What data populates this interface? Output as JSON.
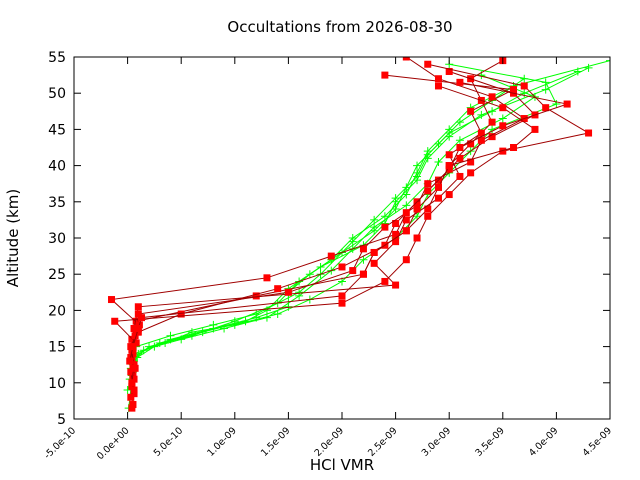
{
  "chart_data": {
    "type": "line",
    "title": "Occultations from 2026-08-30",
    "xlabel": "HCl VMR",
    "ylabel": "Altitude (km)",
    "xlim": [
      -5e-10,
      4.5e-09
    ],
    "ylim": [
      5,
      55
    ],
    "x_tick_labels": [
      "-5.0e-10",
      "0.0e+00",
      "5.0e-10",
      "1.0e-09",
      "1.5e-09",
      "2.0e-09",
      "2.5e-09",
      "3.0e-09",
      "3.5e-09",
      "4.0e-09",
      "4.5e-09"
    ],
    "y_tick_labels": [
      "5",
      "10",
      "15",
      "20",
      "25",
      "30",
      "35",
      "40",
      "45",
      "50",
      "55"
    ],
    "grid": false,
    "legend": "none",
    "series": [
      {
        "color": "#ff0000",
        "marker": "square",
        "line_color": "#a00000",
        "profiles": [
          [
            [
              4e-11,
              6.5
            ],
            [
              6e-11,
              8.5
            ],
            [
              5e-11,
              11.0
            ],
            [
              3e-11,
              13.5
            ],
            [
              4e-11,
              16.0
            ],
            [
              8e-11,
              18.5
            ],
            [
              1.2e-09,
              22.0
            ],
            [
              2.2e-09,
              25.0
            ],
            [
              2.3e-09,
              28.0
            ],
            [
              2.6e-09,
              31.0
            ],
            [
              2.8e-09,
              34.0
            ],
            [
              2.9e-09,
              37.0
            ],
            [
              3e-09,
              40.0
            ],
            [
              3.2e-09,
              43.0
            ],
            [
              3.4e-09,
              46.0
            ],
            [
              3.3e-09,
              49.0
            ],
            [
              3.2e-09,
              52.0
            ],
            [
              3.5e-09,
              54.5
            ]
          ],
          [
            [
              5e-11,
              7.0
            ],
            [
              4e-11,
              9.5
            ],
            [
              7e-11,
              12.0
            ],
            [
              5e-11,
              14.5
            ],
            [
              1e-10,
              17.0
            ],
            [
              5e-10,
              19.5
            ],
            [
              1.4e-09,
              23.0
            ],
            [
              2e-09,
              26.0
            ],
            [
              2.4e-09,
              29.0
            ],
            [
              2.5e-09,
              32.0
            ],
            [
              2.7e-09,
              35.0
            ],
            [
              2.9e-09,
              38.0
            ],
            [
              3.1e-09,
              41.0
            ],
            [
              3.4e-09,
              44.0
            ],
            [
              3.8e-09,
              47.0
            ],
            [
              3.6e-09,
              50.0
            ],
            [
              3e-09,
              53.0
            ]
          ],
          [
            [
              3e-11,
              8.0
            ],
            [
              6e-11,
              10.5
            ],
            [
              4e-11,
              13.0
            ],
            [
              8e-11,
              15.5
            ],
            [
              -1.2e-10,
              18.5
            ],
            [
              2e-09,
              21.0
            ],
            [
              2.4e-09,
              24.0
            ],
            [
              2.6e-09,
              27.0
            ],
            [
              2.7e-09,
              30.0
            ],
            [
              2.8e-09,
              33.0
            ],
            [
              3e-09,
              36.0
            ],
            [
              3.2e-09,
              39.0
            ],
            [
              3.5e-09,
              42.0
            ],
            [
              4.3e-09,
              44.5
            ],
            [
              3.9e-09,
              48.0
            ],
            [
              3.7e-09,
              51.0
            ],
            [
              2.8e-09,
              54.0
            ]
          ],
          [
            [
              6e-11,
              9.0
            ],
            [
              3e-11,
              11.5
            ],
            [
              5e-11,
              14.0
            ],
            [
              6e-11,
              17.5
            ],
            [
              1e-10,
              20.5
            ],
            [
              2.5e-09,
              23.5
            ],
            [
              2.3e-09,
              26.5
            ],
            [
              2.5e-09,
              29.5
            ],
            [
              2.6e-09,
              32.5
            ],
            [
              2.9e-09,
              35.5
            ],
            [
              3.1e-09,
              38.5
            ],
            [
              3e-09,
              41.5
            ],
            [
              3.3e-09,
              44.5
            ],
            [
              3.2e-09,
              47.5
            ],
            [
              3.6e-09,
              50.5
            ],
            [
              2.4e-09,
              52.5
            ]
          ],
          [
            [
              4e-11,
              10.0
            ],
            [
              6e-11,
              12.5
            ],
            [
              3e-11,
              15.0
            ],
            [
              9e-11,
              17.0
            ],
            [
              1e-10,
              19.5
            ],
            [
              1.5e-09,
              22.5
            ],
            [
              2.1e-09,
              25.5
            ],
            [
              2.2e-09,
              28.5
            ],
            [
              2.4e-09,
              31.5
            ],
            [
              2.7e-09,
              34.5
            ],
            [
              2.8e-09,
              37.5
            ],
            [
              3.2e-09,
              40.5
            ],
            [
              3.3e-09,
              43.5
            ],
            [
              3.7e-09,
              46.5
            ],
            [
              3.4e-09,
              49.5
            ],
            [
              2.9e-09,
              52.0
            ],
            [
              2.6e-09,
              55.0
            ]
          ],
          [
            [
              5e-11,
              12.0
            ],
            [
              4e-11,
              14.5
            ],
            [
              7e-11,
              16.5
            ],
            [
              1.1e-10,
              18.0
            ],
            [
              -1.5e-10,
              21.5
            ],
            [
              1.3e-09,
              24.5
            ],
            [
              1.9e-09,
              27.5
            ],
            [
              2.5e-09,
              30.5
            ],
            [
              2.6e-09,
              33.5
            ],
            [
              2.8e-09,
              36.5
            ],
            [
              3e-09,
              39.5
            ],
            [
              3.1e-09,
              42.5
            ],
            [
              3.5e-09,
              45.5
            ],
            [
              4.1e-09,
              48.5
            ],
            [
              3.1e-09,
              51.5
            ]
          ],
          [
            [
              2e-11,
              13.0
            ],
            [
              5e-11,
              15.0
            ],
            [
              1e-10,
              17.5
            ],
            [
              1.3e-10,
              19.0
            ],
            [
              2e-09,
              22.0
            ],
            [
              2.2e-09,
              25.0
            ],
            [
              2.3e-09,
              28.0
            ],
            [
              2.6e-09,
              31.0
            ],
            [
              2.7e-09,
              34.0
            ],
            [
              2.9e-09,
              37.0
            ],
            [
              3e-09,
              40.0
            ],
            [
              3.6e-09,
              42.5
            ],
            [
              3.8e-09,
              45.0
            ],
            [
              3.5e-09,
              48.0
            ],
            [
              2.9e-09,
              51.0
            ]
          ]
        ]
      },
      {
        "color": "#00ff00",
        "marker": "plus",
        "line_color": "#00ff00",
        "profiles": [
          [
            [
              1e-11,
              6.5
            ],
            [
              3e-11,
              9.0
            ],
            [
              5e-11,
              11.5
            ],
            [
              8e-11,
              13.5
            ],
            [
              2e-10,
              15.0
            ],
            [
              6e-10,
              16.5
            ],
            [
              1e-09,
              18.5
            ],
            [
              1.4e-09,
              21.0
            ],
            [
              1.6e-09,
              24.0
            ],
            [
              1.9e-09,
              27.0
            ],
            [
              2.1e-09,
              30.0
            ],
            [
              2.4e-09,
              33.0
            ],
            [
              2.6e-09,
              36.0
            ],
            [
              2.7e-09,
              39.0
            ],
            [
              2.8e-09,
              42.0
            ],
            [
              3e-09,
              45.0
            ],
            [
              3.2e-09,
              48.0
            ],
            [
              3.6e-09,
              51.0
            ],
            [
              4.5e-09,
              54.5
            ]
          ],
          [
            [
              0.0,
              9.0
            ],
            [
              4e-11,
              11.0
            ],
            [
              6e-11,
              13.0
            ],
            [
              1.5e-10,
              14.5
            ],
            [
              4e-10,
              16.0
            ],
            [
              8e-10,
              17.5
            ],
            [
              1.2e-09,
              19.0
            ],
            [
              1.5e-09,
              20.5
            ],
            [
              1.5e-09,
              22.5
            ],
            [
              1.7e-09,
              25.0
            ],
            [
              2e-09,
              28.0
            ],
            [
              2.3e-09,
              31.0
            ],
            [
              2.5e-09,
              34.0
            ],
            [
              2.6e-09,
              37.0
            ],
            [
              2.7e-09,
              40.0
            ],
            [
              2.9e-09,
              43.0
            ],
            [
              3.1e-09,
              46.0
            ],
            [
              3.4e-09,
              49.0
            ],
            [
              3.7e-09,
              52.0
            ]
          ],
          [
            [
              2e-11,
              10.5
            ],
            [
              5e-11,
              12.5
            ],
            [
              1e-10,
              14.0
            ],
            [
              3e-10,
              15.5
            ],
            [
              7e-10,
              17.0
            ],
            [
              1.1e-09,
              18.5
            ],
            [
              1.3e-09,
              20.0
            ],
            [
              1.5e-09,
              23.0
            ],
            [
              1.8e-09,
              26.0
            ],
            [
              2.2e-09,
              29.0
            ],
            [
              2.4e-09,
              32.0
            ],
            [
              2.5e-09,
              35.0
            ],
            [
              2.7e-09,
              38.0
            ],
            [
              2.8e-09,
              41.0
            ],
            [
              3e-09,
              44.0
            ],
            [
              3.3e-09,
              47.0
            ],
            [
              3.9e-09,
              50.5
            ],
            [
              4.3e-09,
              53.5
            ]
          ],
          [
            [
              3e-11,
              12.0
            ],
            [
              9e-11,
              13.5
            ],
            [
              2.5e-10,
              15.0
            ],
            [
              5e-10,
              16.0
            ],
            [
              9e-10,
              17.5
            ],
            [
              1.3e-09,
              19.0
            ],
            [
              1.6e-09,
              22.0
            ],
            [
              1.9e-09,
              25.5
            ],
            [
              2.1e-09,
              28.5
            ],
            [
              2.3e-09,
              31.5
            ],
            [
              2.6e-09,
              34.5
            ],
            [
              2.8e-09,
              37.5
            ],
            [
              2.9e-09,
              40.5
            ],
            [
              3.1e-09,
              43.5
            ],
            [
              3.5e-09,
              46.5
            ],
            [
              3.8e-09,
              49.5
            ],
            [
              3.3e-09,
              52.5
            ]
          ],
          [
            [
              6e-11,
              14.0
            ],
            [
              3.5e-10,
              15.5
            ],
            [
              6e-10,
              17.0
            ],
            [
              1e-09,
              18.0
            ],
            [
              1.4e-09,
              19.5
            ],
            [
              1.7e-09,
              21.5
            ],
            [
              2e-09,
              24.0
            ],
            [
              2.2e-09,
              27.0
            ],
            [
              2.5e-09,
              30.0
            ],
            [
              2.7e-09,
              33.0
            ],
            [
              2.8e-09,
              36.0
            ],
            [
              3e-09,
              39.0
            ],
            [
              3.2e-09,
              42.0
            ],
            [
              3.4e-09,
              45.0
            ],
            [
              4e-09,
              48.5
            ],
            [
              3.9e-09,
              51.5
            ],
            [
              3e-09,
              54.0
            ]
          ],
          [
            [
              8e-11,
              15.0
            ],
            [
              4e-10,
              16.5
            ],
            [
              8e-10,
              18.0
            ],
            [
              1.2e-09,
              19.5
            ],
            [
              1.6e-09,
              22.5
            ],
            [
              1.8e-09,
              25.0
            ],
            [
              2.1e-09,
              29.5
            ],
            [
              2.3e-09,
              32.5
            ],
            [
              2.5e-09,
              35.5
            ],
            [
              2.7e-09,
              38.5
            ],
            [
              2.8e-09,
              41.5
            ],
            [
              3e-09,
              44.5
            ],
            [
              3.4e-09,
              47.5
            ],
            [
              3.7e-09,
              50.0
            ],
            [
              4.2e-09,
              53.0
            ]
          ]
        ]
      }
    ]
  }
}
